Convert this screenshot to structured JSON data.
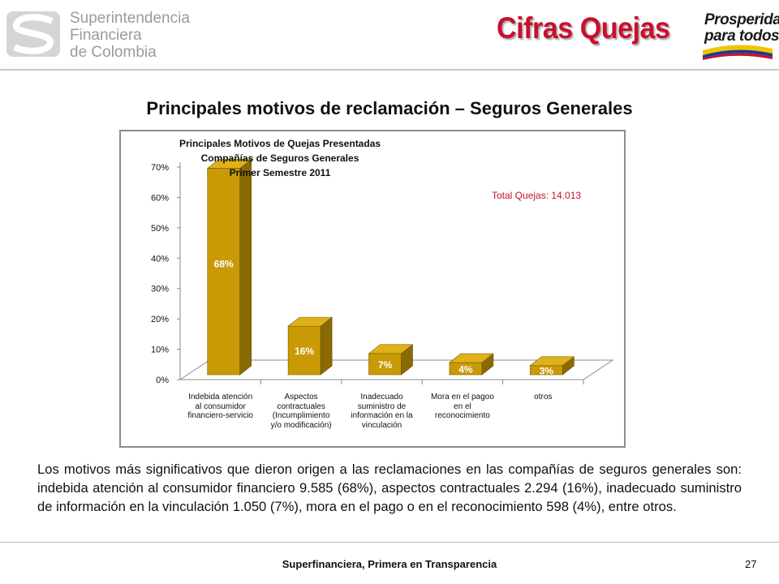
{
  "header": {
    "org_line1": "Superintendencia",
    "org_line2": "Financiera",
    "org_line3": "de Colombia",
    "slide_title": "Cifras Quejas",
    "badge_line1": "Prosperidad",
    "badge_line2": "para todos"
  },
  "subtitle": "Principales motivos de reclamación – Seguros Generales",
  "chart_data": {
    "type": "bar",
    "title_lines": [
      "Principales Motivos  de Quejas Presentadas",
      "Compañías de Seguros Generales",
      "Primer Semestre  2011"
    ],
    "annotation": "Total Quejas:  14.013",
    "categories": [
      [
        "Indebida atención",
        "al consumidor",
        "financiero-servicio"
      ],
      [
        "Aspectos",
        "contractuales",
        "(Incumplimiento",
        "y/o modificación)"
      ],
      [
        "Inadecuado",
        "suministro de",
        "información en la",
        "vinculación"
      ],
      [
        "Mora en el pagoo",
        "en el",
        "reconocimiento"
      ],
      [
        "otros"
      ]
    ],
    "values": [
      68,
      16,
      7,
      4,
      3
    ],
    "data_labels": [
      "68%",
      "16%",
      "7%",
      "4%",
      "3%"
    ],
    "yticks": [
      "0%",
      "10%",
      "20%",
      "30%",
      "40%",
      "50%",
      "60%",
      "70%"
    ],
    "ylim": [
      0,
      70
    ],
    "bar_color": "#c99a06",
    "bar_side_color": "#8a6a04",
    "bar_top_color": "#e0b21a",
    "annotation_color": "#c8102e"
  },
  "paragraph": "Los motivos más significativos que dieron origen a las reclamaciones en las compañías de seguros generales son: indebida atención al consumidor financiero 9.585 (68%), aspectos contractuales 2.294 (16%), inadecuado suministro de información en la vinculación 1.050 (7%), mora en el pago o en el reconocimiento 598 (4%), entre otros.",
  "footer": {
    "tagline": "Superfinanciera, Primera en Transparencia",
    "page_number": "27"
  },
  "colors": {
    "title_red": "#c8102e",
    "logo_gray": "#9a9a9a"
  }
}
